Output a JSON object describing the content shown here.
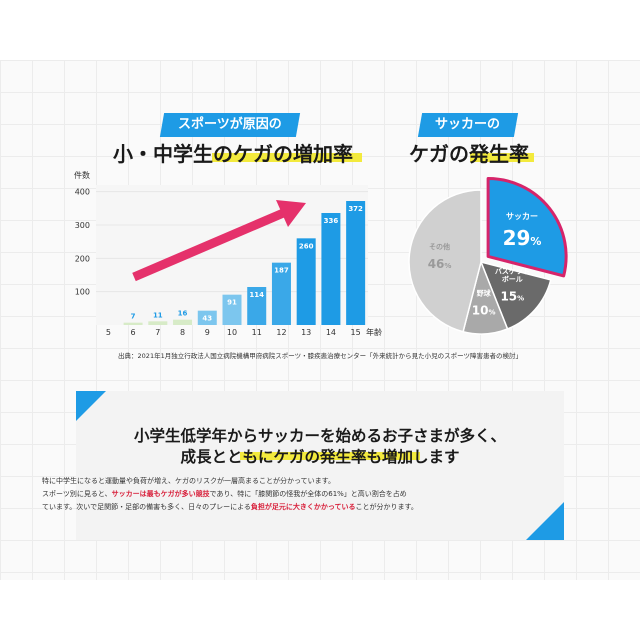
{
  "left": {
    "tag": "スポーツが原因の",
    "title": "小・中学生のケガの増加率"
  },
  "right": {
    "tag": "サッカーの",
    "title": "ケガの発生率"
  },
  "chart_data": [
    {
      "type": "bar",
      "title": "小・中学生のケガの増加率",
      "ylabel": "件数",
      "xlabel": "年齢",
      "ylim": [
        0,
        420
      ],
      "yticks": [
        "100",
        "200",
        "300",
        "400"
      ],
      "categories": [
        "5",
        "6",
        "7",
        "8",
        "9",
        "10",
        "11",
        "12",
        "13",
        "14",
        "15"
      ],
      "values": [
        0,
        7,
        11,
        16,
        43,
        91,
        114,
        187,
        260,
        336,
        372
      ],
      "value_labels": [
        "",
        "7",
        "11",
        "16",
        "43",
        "91",
        "114",
        "187",
        "260",
        "336",
        "372"
      ],
      "colors": {
        "low": "#aed8ef",
        "high": "#1e9be5",
        "arrow": "#e5316b"
      },
      "grid": true
    },
    {
      "type": "pie",
      "title": "ケガの発生率",
      "slices": [
        {
          "label": "サッカー",
          "value": 29,
          "display": "29",
          "unit": "%",
          "color": "#1e9be5"
        },
        {
          "label": "バスケットボール",
          "label_lines": [
            "バスケット",
            "ボール"
          ],
          "value": 15,
          "display": "15",
          "unit": "%",
          "color": "#6a6a6a"
        },
        {
          "label": "野球",
          "value": 10,
          "display": "10",
          "unit": "%",
          "color": "#a9a9a9"
        },
        {
          "label": "その他",
          "value": 46,
          "display": "46",
          "unit": "%",
          "color": "#d0d0d0"
        }
      ]
    }
  ],
  "source": "出典：2021年1月独立行政法人国立病院機構甲府病院スポーツ・膝疾患治療センター「外来統計から見た小児のスポーツ障害患者の検討」",
  "info": {
    "headline1": "小学生低学年からサッカーを始めるお子さまが多く、",
    "headline2": "成長とともにケガの発生率も増加します",
    "line1": "特に中学生になると運動量や負荷が増え、ケガのリスクが一層高まることが分かっています。",
    "line2a": "スポーツ別に見ると、",
    "line2b": "サッカーは最もケガが多い競技",
    "line2c": "であり、特に「膝関節の怪我が全体の61%」と高い割合を占め",
    "line3a": "ています。次いで足関節・足部の備害も多く、日々のプレーによる",
    "line3b": "負担が足元に大きくかかっている",
    "line3c": "ことが分かります。"
  }
}
